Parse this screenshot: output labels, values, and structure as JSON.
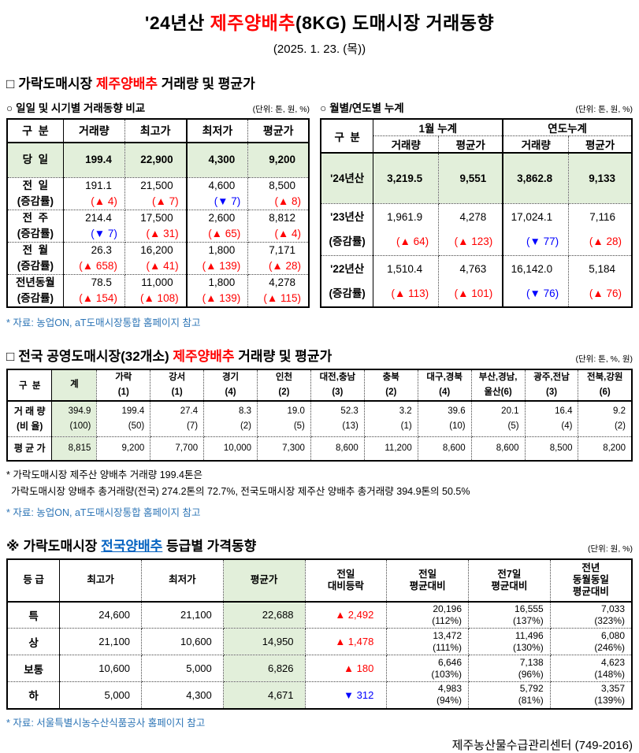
{
  "page": {
    "title_prefix": "'24년산 ",
    "title_highlight": "제주양배추",
    "title_suffix": "(8KG) 도매시장 거래동향",
    "date": "(2025. 1. 23. (목))"
  },
  "colors": {
    "accent_red": "#ff0000",
    "accent_blue": "#0000ff",
    "highlight_green": "#e2efda",
    "note_blue": "#2e75b6",
    "link_blue": "#0563c1"
  },
  "section1": {
    "bullet": "□",
    "title_prefix": "가락도매시장 ",
    "title_highlight": "제주양배추",
    "title_suffix": " 거래량 및 평균가",
    "daily_table": {
      "bullet": "○",
      "subtitle": "일일 및 시기별 거래동향 비교",
      "unit": "(단위: 톤, 원, %)",
      "headers": [
        "구  분",
        "거래량",
        "최고가",
        "최저가",
        "평균가"
      ],
      "rows": [
        {
          "label": "당  일",
          "highlight": true,
          "values": [
            "199.4",
            "22,900",
            "4,300",
            "9,200"
          ]
        },
        {
          "label": "전  일",
          "sublabel": "(증감률)",
          "values": [
            "191.1",
            "21,500",
            "4,600",
            "8,500"
          ],
          "changes": [
            "(▲ 4)",
            "(▲ 7)",
            "(▼ 7)",
            "(▲ 8)"
          ]
        },
        {
          "label": "전  주",
          "sublabel": "(증감률)",
          "values": [
            "214.4",
            "17,500",
            "2,600",
            "8,812"
          ],
          "changes": [
            "(▼ 7)",
            "(▲ 31)",
            "(▲ 65)",
            "(▲ 4)"
          ]
        },
        {
          "label": "전  월",
          "sublabel": "(증감률)",
          "values": [
            "26.3",
            "16,200",
            "1,800",
            "7,171"
          ],
          "changes": [
            "(▲ 658)",
            "(▲ 41)",
            "(▲ 139)",
            "(▲ 28)"
          ]
        },
        {
          "label": "전년동월",
          "sublabel": "(증감률)",
          "values": [
            "78.5",
            "11,000",
            "1,800",
            "4,278"
          ],
          "changes": [
            "(▲ 154)",
            "(▲ 108)",
            "(▲ 139)",
            "(▲ 115)"
          ]
        }
      ],
      "source": "* 자료: 농업ON, aT도매시장통합 홈페이지 참고"
    },
    "cumulative_table": {
      "bullet": "○",
      "subtitle": "월별/연도별 누계",
      "unit": "(단위: 톤, 원, %)",
      "corner": "구  분",
      "groups": [
        "1월 누계",
        "연도누계"
      ],
      "sub_headers": [
        "거래량",
        "평균가",
        "거래량",
        "평균가"
      ],
      "rows": [
        {
          "label": "'24년산",
          "highlight": true,
          "values": [
            "3,219.5",
            "9,551",
            "3,862.8",
            "9,133"
          ]
        },
        {
          "label": "'23년산",
          "sublabel": "(증감률)",
          "values": [
            "1,961.9",
            "4,278",
            "17,024.1",
            "7,116"
          ],
          "changes": [
            "(▲ 64)",
            "(▲ 123)",
            "(▼ 77)",
            "(▲ 28)"
          ]
        },
        {
          "label": "'22년산",
          "sublabel": "(증감률)",
          "values": [
            "1,510.4",
            "4,763",
            "16,142.0",
            "5,184"
          ],
          "changes": [
            "(▲ 113)",
            "(▲ 101)",
            "(▼ 76)",
            "(▲ 76)"
          ]
        }
      ]
    }
  },
  "section2": {
    "bullet": "□",
    "title_prefix": "전국 공영도매시장(32개소) ",
    "title_highlight": "제주양배추",
    "title_suffix": " 거래량 및 평균가",
    "unit": "(단위: 톤, %, 원)",
    "table": {
      "corner": "구  분",
      "columns": [
        {
          "name": "계",
          "sub": "",
          "highlight": true
        },
        {
          "name": "가락",
          "sub": "(1)"
        },
        {
          "name": "강서",
          "sub": "(1)"
        },
        {
          "name": "경기",
          "sub": "(4)"
        },
        {
          "name": "인천",
          "sub": "(2)"
        },
        {
          "name": "대전,충남",
          "sub": "(3)"
        },
        {
          "name": "충북",
          "sub": "(2)"
        },
        {
          "name": "대구,경북",
          "sub": "(4)"
        },
        {
          "name": "부산,경남,",
          "sub": "울산(6)"
        },
        {
          "name": "광주,전남",
          "sub": "(3)"
        },
        {
          "name": "전북,강원",
          "sub": "(6)"
        }
      ],
      "volume_row": {
        "label": "거 래 량",
        "sublabel": "(비 율)",
        "values": [
          "394.9",
          "199.4",
          "27.4",
          "8.3",
          "19.0",
          "52.3",
          "3.2",
          "39.6",
          "20.1",
          "16.4",
          "9.2"
        ],
        "shares": [
          "(100)",
          "(50)",
          "(7)",
          "(2)",
          "(5)",
          "(13)",
          "(1)",
          "(10)",
          "(5)",
          "(4)",
          "(2)"
        ]
      },
      "price_row": {
        "label": "평 균 가",
        "values": [
          "8,815",
          "9,200",
          "7,700",
          "10,000",
          "7,300",
          "8,600",
          "11,200",
          "8,600",
          "8,600",
          "8,500",
          "8,200"
        ]
      }
    },
    "note_line1": "* 가락도매시장 제주산 양배추 거래량 199.4톤은",
    "note_line2": "가락도매시장 양배추 총거래량(전국) 274.2톤의 72.7%, 전국도매시장 제주산 양배추 총거래량 394.9톤의 50.5%",
    "source": "* 자료: 농업ON, aT도매시장통합 홈페이지 참고"
  },
  "section3": {
    "bullet": "※",
    "title_prefix": "가락도매시장 ",
    "title_link": "전국양배추",
    "title_suffix": " 등급별 가격동향",
    "unit": "(단위: 원, %)",
    "table": {
      "headers": [
        "등  급",
        "최고가",
        "최저가",
        "평균가",
        "전일\n대비등락",
        "전일\n평균대비",
        "전7일\n평균대비",
        "전년\n동월동일\n평균대비"
      ],
      "rows": [
        {
          "grade": "특",
          "high": "24,600",
          "low": "21,100",
          "avg": "22,688",
          "change": "▲ 2,492",
          "vs_prev": [
            "20,196",
            "(112%)"
          ],
          "vs_7day": [
            "16,555",
            "(137%)"
          ],
          "vs_year": [
            "7,033",
            "(323%)"
          ]
        },
        {
          "grade": "상",
          "high": "21,100",
          "low": "10,600",
          "avg": "14,950",
          "change": "▲ 1,478",
          "vs_prev": [
            "13,472",
            "(111%)"
          ],
          "vs_7day": [
            "11,496",
            "(130%)"
          ],
          "vs_year": [
            "6,080",
            "(246%)"
          ]
        },
        {
          "grade": "보통",
          "high": "10,600",
          "low": "5,000",
          "avg": "6,826",
          "change": "▲ 180",
          "vs_prev": [
            "6,646",
            "(103%)"
          ],
          "vs_7day": [
            "7,138",
            "(96%)"
          ],
          "vs_year": [
            "4,623",
            "(148%)"
          ]
        },
        {
          "grade": "하",
          "high": "5,000",
          "low": "4,300",
          "avg": "4,671",
          "change": "▼ 312",
          "vs_prev": [
            "4,983",
            "(94%)"
          ],
          "vs_7day": [
            "5,792",
            "(81%)"
          ],
          "vs_year": [
            "3,357",
            "(139%)"
          ]
        }
      ]
    },
    "source": "* 자료: 서울특별시농수산식품공사 홈페이지 참고"
  },
  "footer": {
    "text": "제주농산물수급관리센터 (749-2016)"
  }
}
